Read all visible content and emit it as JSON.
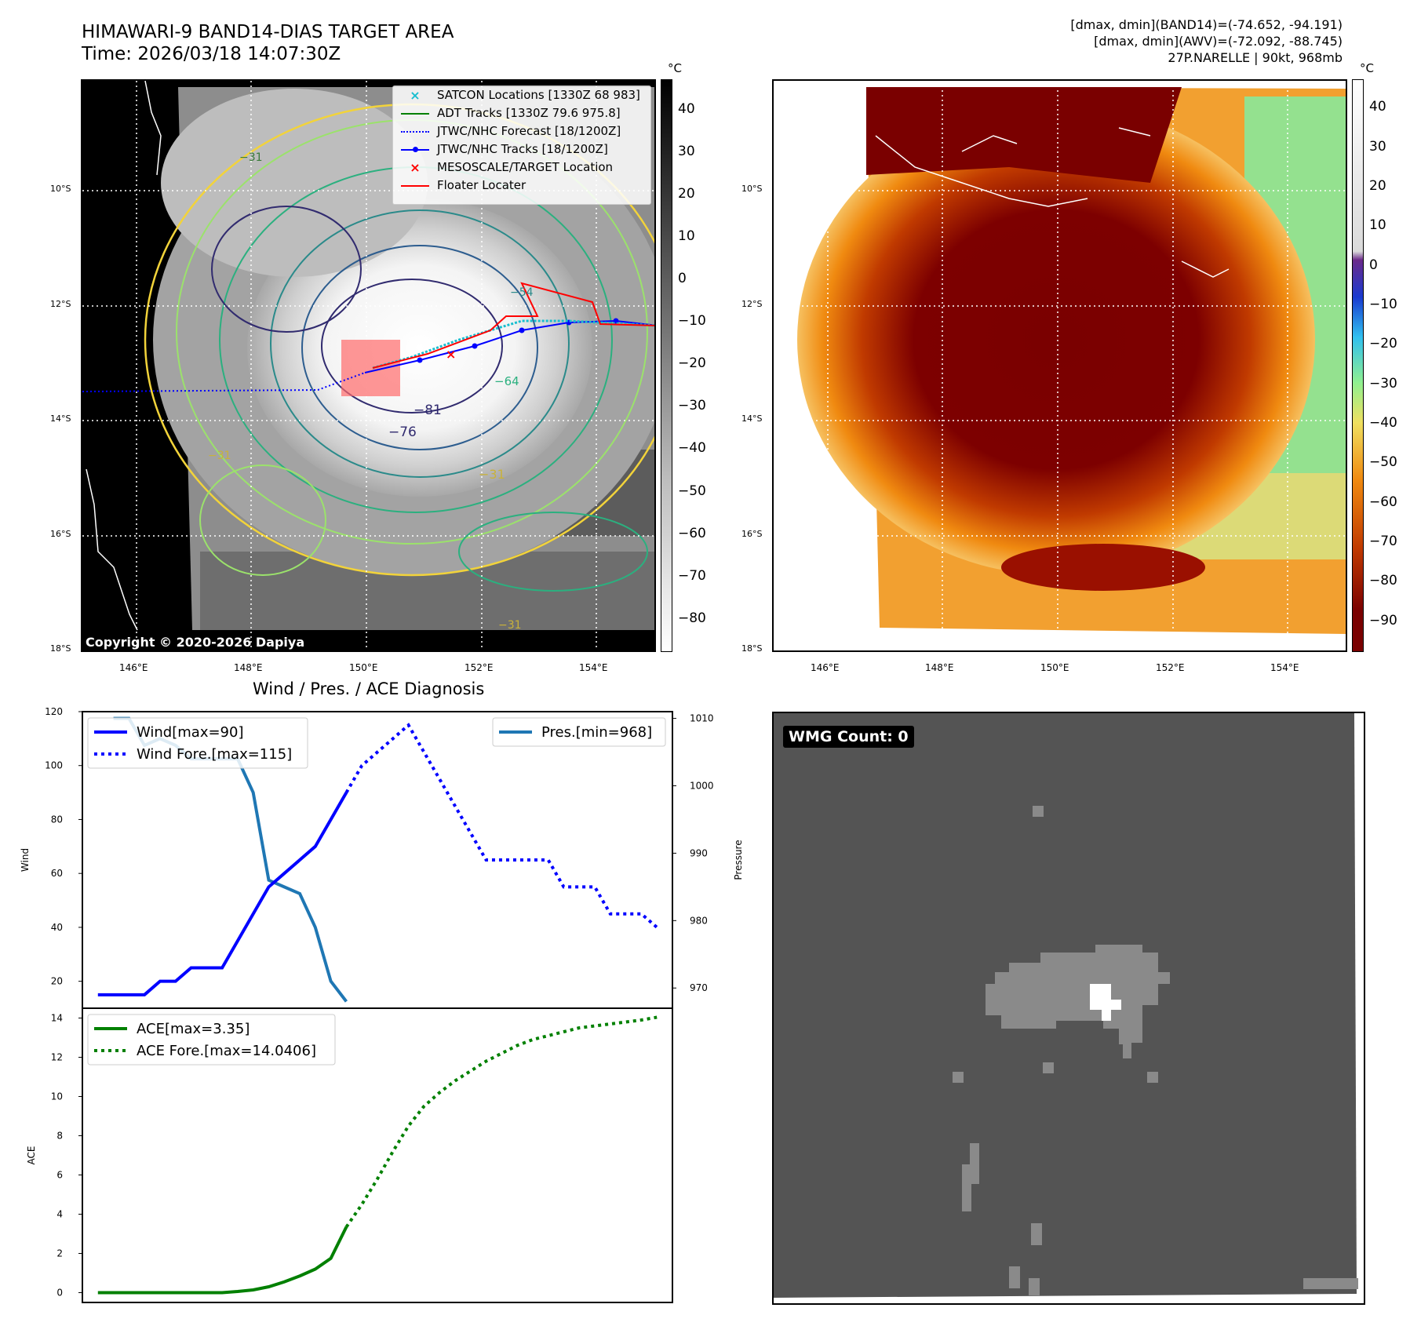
{
  "header": {
    "title_line1": "HIMAWARI-9 BAND14-DIAS TARGET AREA",
    "title_line2": "Time: 2026/03/18 14:07:30Z",
    "info_line1": "[dmax, dmin](BAND14)=(-74.652, -94.191)",
    "info_line2": "[dmax, dmin](AWV)=(-72.092, -88.745)",
    "info_line3": "27P.NARELLE | 90kt, 968mb"
  },
  "ir_panel": {
    "colorbar_unit": "°C",
    "colorbar_ticks": [
      "40",
      "30",
      "20",
      "10",
      "0",
      "−10",
      "−20",
      "−30",
      "−40",
      "−50",
      "−60",
      "−70",
      "−80"
    ],
    "lat_labels": [
      "10°S",
      "12°S",
      "14°S",
      "16°S",
      "18°S"
    ],
    "lon_labels": [
      "146°E",
      "148°E",
      "150°E",
      "152°E",
      "154°E"
    ],
    "contour_labels": [
      "−31",
      "−54",
      "−64",
      "−76",
      "−81",
      "−31",
      "−31",
      "−31"
    ],
    "copyright": "Copyright © 2020-2026 Dapiya",
    "legend": [
      {
        "label": "SATCON Locations [1330Z 68 983]",
        "color": "#17becf",
        "symbol": "x"
      },
      {
        "label": "ADT Tracks [1330Z 79.6 975.8]",
        "color": "#008000",
        "symbol": "line"
      },
      {
        "label": "JTWC/NHC Forecast [18/1200Z]",
        "color": "#0000ff",
        "symbol": "dotted"
      },
      {
        "label": "JTWC/NHC Tracks [18/1200Z]",
        "color": "#0000ff",
        "symbol": "line-dot"
      },
      {
        "label": "MESOSCALE/TARGET Location",
        "color": "#ff0000",
        "symbol": "x"
      },
      {
        "label": "Floater Locater",
        "color": "#ff0000",
        "symbol": "line"
      }
    ]
  },
  "wv_panel": {
    "colorbar_unit": "°C",
    "colorbar_ticks": [
      "40",
      "30",
      "20",
      "10",
      "0",
      "−10",
      "−20",
      "−30",
      "−40",
      "−50",
      "−60",
      "−70",
      "−80",
      "−90"
    ],
    "lat_labels": [
      "10°S",
      "12°S",
      "14°S",
      "16°S",
      "18°S"
    ],
    "lon_labels": [
      "146°E",
      "148°E",
      "150°E",
      "152°E",
      "154°E"
    ]
  },
  "wmg_panel": {
    "badge": "WMG Count: 0"
  },
  "chart_data": [
    {
      "type": "line",
      "title": "Wind / Pres. / ACE Diagnosis",
      "ylabel": "Wind",
      "ylabel_right": "Pressure",
      "ylim": [
        10,
        120
      ],
      "ylim_right": [
        967,
        1011
      ],
      "yticks": [
        20,
        40,
        60,
        80,
        100,
        120
      ],
      "yticks_right": [
        970,
        980,
        990,
        1000,
        1010
      ],
      "x": [
        0,
        1,
        2,
        3,
        4,
        5,
        6,
        7,
        8,
        9,
        10,
        11,
        12,
        13,
        14,
        15,
        16,
        17,
        18,
        19,
        20,
        21,
        22,
        23,
        24,
        25,
        26,
        27,
        28,
        29,
        30,
        31,
        32,
        33,
        34,
        35,
        36
      ],
      "series": [
        {
          "name": "Wind[max=90]",
          "color": "#0000ff",
          "style": "solid",
          "x": [
            0,
            1,
            2,
            3,
            4,
            5,
            6,
            7,
            8,
            9,
            10,
            11,
            12,
            13,
            14,
            15,
            16
          ],
          "values": [
            15,
            15,
            15,
            15,
            20,
            20,
            25,
            25,
            25,
            35,
            45,
            55,
            60,
            65,
            70,
            80,
            90
          ]
        },
        {
          "name": "Wind Fore.[max=115]",
          "color": "#0000ff",
          "style": "dotted",
          "x": [
            16,
            17,
            18,
            19,
            20,
            21,
            22,
            23,
            24,
            25,
            26,
            27,
            28,
            29,
            30,
            31,
            32,
            33,
            34,
            35,
            36
          ],
          "values": [
            90,
            100,
            105,
            110,
            115,
            105,
            95,
            85,
            75,
            65,
            65,
            65,
            65,
            65,
            55,
            55,
            55,
            45,
            45,
            45,
            40
          ]
        },
        {
          "name": "Pres.[min=968]",
          "color": "#1f77b4",
          "style": "solid",
          "axis": "right",
          "x": [
            1,
            2,
            3,
            4,
            5,
            6,
            7,
            8,
            9,
            10,
            11,
            12,
            13,
            14,
            15,
            16
          ],
          "values": [
            1010,
            1010,
            1006,
            1007,
            1006,
            1004,
            1004,
            1004,
            1004,
            999,
            986,
            985,
            984,
            979,
            971,
            968
          ]
        }
      ]
    },
    {
      "type": "line",
      "ylabel": "ACE",
      "ylim": [
        -0.5,
        14.5
      ],
      "yticks": [
        0,
        2,
        4,
        6,
        8,
        10,
        12,
        14
      ],
      "x": [
        0,
        1,
        2,
        3,
        4,
        5,
        6,
        7,
        8,
        9,
        10,
        11,
        12,
        13,
        14,
        15,
        16,
        17,
        18,
        19,
        20,
        21,
        22,
        23,
        24,
        25,
        26,
        27,
        28,
        29,
        30,
        31,
        32,
        33,
        34,
        35,
        36
      ],
      "series": [
        {
          "name": "ACE[max=3.35]",
          "color": "#008000",
          "style": "solid",
          "x": [
            0,
            1,
            2,
            3,
            4,
            5,
            6,
            7,
            8,
            9,
            10,
            11,
            12,
            13,
            14,
            15,
            16
          ],
          "values": [
            0,
            0,
            0,
            0,
            0,
            0,
            0,
            0,
            0,
            0.06,
            0.14,
            0.3,
            0.55,
            0.85,
            1.2,
            1.75,
            3.35
          ]
        },
        {
          "name": "ACE Fore.[max=14.0406]",
          "color": "#008000",
          "style": "dotted",
          "x": [
            16,
            17,
            18,
            19,
            20,
            21,
            22,
            23,
            24,
            25,
            26,
            27,
            28,
            29,
            30,
            31,
            32,
            33,
            34,
            35,
            36
          ],
          "values": [
            3.35,
            4.5,
            5.8,
            7.2,
            8.5,
            9.5,
            10.2,
            10.8,
            11.3,
            11.8,
            12.2,
            12.6,
            12.9,
            13.1,
            13.3,
            13.5,
            13.6,
            13.7,
            13.8,
            13.9,
            14.04
          ]
        }
      ]
    }
  ]
}
